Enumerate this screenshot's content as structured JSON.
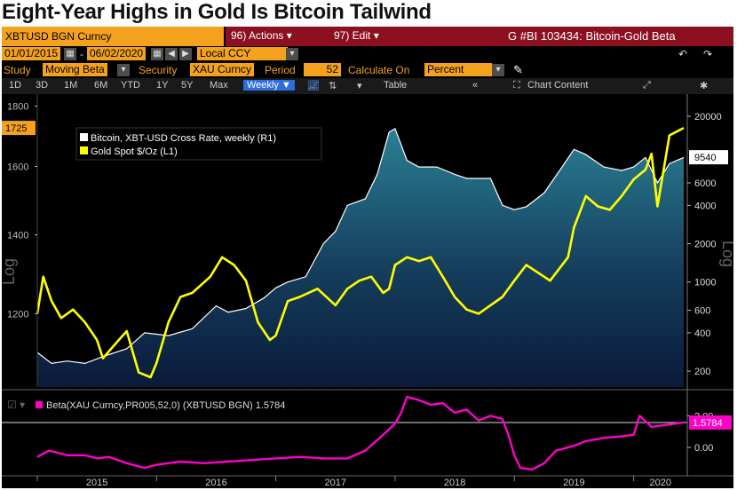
{
  "headline": "Eight-Year Highs in Gold Is Bitcoin Tailwind",
  "colors": {
    "orange": "#f4a21e",
    "red_bar": "#8c1020",
    "bitcoin": "#ffffff",
    "gold": "#ffff00",
    "beta": "#ff00c8",
    "toolbar_blue": "#2d6de0"
  },
  "header": {
    "ticker": "XBTUSD BGN Curncy",
    "actions": "96) Actions ▾",
    "edit": "97) Edit ▾",
    "chart_title": "G #BI 103434: Bitcoin-Gold Beta"
  },
  "date_bar": {
    "start": "01/01/2015",
    "dash": "-",
    "end": "06/02/2020",
    "currency": "Local CCY"
  },
  "study_bar": {
    "study_label": "Study",
    "study_value": "Moving Beta",
    "security_label": "Security",
    "security_value": "XAU Curncy",
    "period_label": "Period",
    "period_value": "52",
    "calc_label": "Calculate On",
    "calc_value": "Percent"
  },
  "toolbar": {
    "ranges": [
      "1D",
      "3D",
      "1M",
      "6M",
      "YTD",
      "1Y",
      "5Y",
      "Max"
    ],
    "frequency": "Weekly ▼",
    "table": "Table",
    "chart_content": "Chart Content"
  },
  "chart_data": {
    "type": "line",
    "x_labels": [
      "2015",
      "2016",
      "2017",
      "2018",
      "2019",
      "2020"
    ],
    "left_axis": {
      "label": "Log",
      "ticks": [
        1200,
        1400,
        1600,
        1800
      ],
      "current": "1725"
    },
    "right_axis": {
      "label": "Log",
      "ticks": [
        200,
        400,
        600,
        1000,
        2000,
        4000,
        6000,
        20000
      ],
      "current": "9540"
    },
    "legend": [
      "Bitcoin, XBT-USD Cross Rate, weekly (R1)",
      "Gold Spot $/Oz (L1)"
    ],
    "series": [
      {
        "name": "Bitcoin, XBT-USD Cross Rate, weekly (R1)",
        "axis": "right",
        "color": "#ffffff",
        "t": [
          2015.0,
          2015.12,
          2015.25,
          2015.4,
          2015.55,
          2015.75,
          2015.9,
          2016.1,
          2016.3,
          2016.5,
          2016.6,
          2016.75,
          2016.9,
          2017.0,
          2017.1,
          2017.25,
          2017.4,
          2017.5,
          2017.6,
          2017.75,
          2017.85,
          2017.95,
          2018.0,
          2018.1,
          2018.2,
          2018.35,
          2018.5,
          2018.6,
          2018.8,
          2018.9,
          2019.0,
          2019.1,
          2019.25,
          2019.4,
          2019.5,
          2019.6,
          2019.75,
          2019.9,
          2020.0,
          2020.1,
          2020.2,
          2020.3,
          2020.42
        ],
        "values": [
          280,
          230,
          240,
          230,
          260,
          300,
          400,
          380,
          430,
          650,
          580,
          620,
          750,
          900,
          1000,
          1100,
          2000,
          2500,
          4000,
          4500,
          7000,
          15000,
          16000,
          9000,
          8000,
          8000,
          7000,
          6500,
          6500,
          4000,
          3700,
          3900,
          5000,
          8000,
          11000,
          10000,
          8000,
          7500,
          8000,
          9500,
          6000,
          8500,
          9500
        ]
      },
      {
        "name": "Gold Spot $/Oz (L1)",
        "axis": "left",
        "color": "#ffff00",
        "t": [
          2015.0,
          2015.05,
          2015.12,
          2015.2,
          2015.3,
          2015.4,
          2015.5,
          2015.55,
          2015.65,
          2015.75,
          2015.85,
          2015.95,
          2016.0,
          2016.1,
          2016.2,
          2016.3,
          2016.45,
          2016.55,
          2016.65,
          2016.75,
          2016.85,
          2016.95,
          2017.0,
          2017.1,
          2017.2,
          2017.35,
          2017.5,
          2017.6,
          2017.7,
          2017.8,
          2017.9,
          2017.95,
          2018.0,
          2018.1,
          2018.2,
          2018.3,
          2018.4,
          2018.5,
          2018.6,
          2018.7,
          2018.8,
          2018.9,
          2019.0,
          2019.1,
          2019.2,
          2019.3,
          2019.45,
          2019.5,
          2019.6,
          2019.7,
          2019.8,
          2019.9,
          2020.0,
          2020.1,
          2020.15,
          2020.2,
          2020.3,
          2020.42
        ],
        "values": [
          1200,
          1290,
          1230,
          1190,
          1210,
          1180,
          1140,
          1100,
          1130,
          1160,
          1070,
          1060,
          1090,
          1180,
          1240,
          1250,
          1290,
          1340,
          1320,
          1280,
          1180,
          1140,
          1150,
          1230,
          1240,
          1260,
          1220,
          1260,
          1280,
          1290,
          1250,
          1260,
          1320,
          1340,
          1330,
          1340,
          1290,
          1240,
          1210,
          1200,
          1220,
          1240,
          1280,
          1320,
          1300,
          1280,
          1340,
          1420,
          1510,
          1480,
          1470,
          1510,
          1560,
          1590,
          1640,
          1480,
          1700,
          1725
        ]
      }
    ],
    "beta_panel": {
      "legend": "Beta(XAU Curncy,PR005,52,0) (XBTUSD BGN) 1.5784",
      "ticks": [
        "0.00",
        "2.00"
      ],
      "current": "1.5784",
      "series": {
        "name": "Beta(XAU Curncy,PR005,52,0) (XBTUSD BGN)",
        "color": "#ff00c8",
        "t": [
          2015.0,
          2015.1,
          2015.25,
          2015.4,
          2015.5,
          2015.6,
          2015.75,
          2015.9,
          2016.0,
          2016.2,
          2016.4,
          2016.6,
          2016.8,
          2017.0,
          2017.2,
          2017.4,
          2017.6,
          2017.75,
          2017.9,
          2018.0,
          2018.05,
          2018.1,
          2018.2,
          2018.3,
          2018.4,
          2018.5,
          2018.6,
          2018.7,
          2018.8,
          2018.9,
          2018.95,
          2019.0,
          2019.05,
          2019.15,
          2019.25,
          2019.35,
          2019.5,
          2019.6,
          2019.75,
          2019.9,
          2020.0,
          2020.05,
          2020.15,
          2020.25,
          2020.42
        ],
        "values": [
          -0.6,
          -0.2,
          -0.5,
          -0.5,
          -0.7,
          -0.6,
          -1.0,
          -1.3,
          -1.1,
          -0.9,
          -1.0,
          -0.9,
          -0.8,
          -0.7,
          -0.6,
          -0.7,
          -0.7,
          -0.2,
          0.8,
          1.5,
          2.2,
          3.2,
          3.0,
          2.7,
          2.8,
          2.2,
          2.4,
          1.7,
          2.0,
          1.8,
          0.8,
          -0.5,
          -1.3,
          -1.4,
          -1.0,
          -0.2,
          0.1,
          0.4,
          0.6,
          0.7,
          0.8,
          2.0,
          1.3,
          1.4,
          1.58
        ]
      }
    }
  }
}
